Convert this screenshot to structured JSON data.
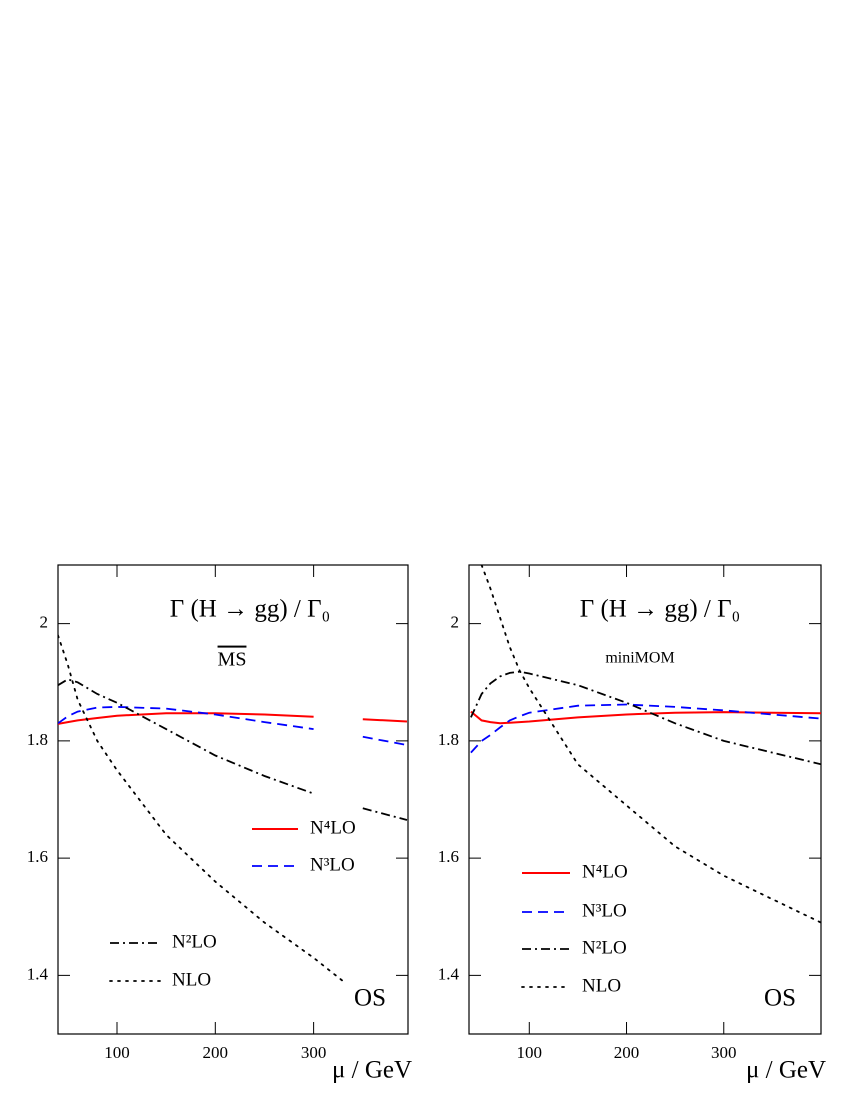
{
  "chart_data": [
    {
      "type": "line",
      "title": "Γ (H → gg) / Γ₀",
      "subtitle": "MS",
      "annotation": "OS",
      "x_label": "μ / GeV",
      "xlim": [
        40,
        396
      ],
      "xticks": [
        100,
        200,
        300
      ],
      "ylim": [
        1.3,
        2.1
      ],
      "yticks": [
        1.4,
        1.6,
        1.8,
        2
      ],
      "x": [
        40,
        50,
        60,
        80,
        100,
        150,
        200,
        250,
        300,
        330,
        350,
        395
      ],
      "series": [
        {
          "name": "N⁴LO",
          "color": "#ff0000",
          "style": "solid",
          "values": [
            1.829,
            1.832,
            1.835,
            1.839,
            1.843,
            1.847,
            1.847,
            1.845,
            1.841,
            null,
            1.837,
            1.833
          ]
        },
        {
          "name": "N³LO",
          "color": "#0000ff",
          "style": "dashed",
          "values": [
            1.83,
            1.842,
            1.85,
            1.857,
            1.858,
            1.855,
            1.845,
            1.832,
            1.82,
            null,
            1.807,
            1.793
          ]
        },
        {
          "name": "N²LO",
          "color": "#000000",
          "style": "dashdot",
          "values": [
            1.895,
            1.905,
            1.9,
            1.88,
            1.865,
            1.82,
            1.775,
            1.74,
            1.71,
            null,
            1.685,
            1.665
          ]
        },
        {
          "name": "NLO",
          "color": "#000000",
          "style": "dotted",
          "values": [
            1.98,
            1.93,
            1.87,
            1.8,
            1.75,
            1.64,
            1.56,
            1.49,
            1.43,
            1.39,
            null,
            null
          ]
        }
      ]
    },
    {
      "type": "line",
      "title": "Γ (H → gg) / Γ₀",
      "subtitle": "miniMOM",
      "annotation": "OS",
      "x_label": "μ / GeV",
      "xlim": [
        38,
        400
      ],
      "xticks": [
        100,
        200,
        300
      ],
      "ylim": [
        1.3,
        2.1
      ],
      "yticks": [
        1.4,
        1.6,
        1.8,
        2
      ],
      "x": [
        40,
        51,
        60,
        70,
        80,
        90,
        100,
        150,
        200,
        250,
        300,
        350,
        400
      ],
      "series": [
        {
          "name": "N⁴LO",
          "color": "#ff0000",
          "style": "solid",
          "values": [
            1.85,
            1.835,
            1.832,
            1.83,
            1.831,
            1.832,
            1.833,
            1.84,
            1.845,
            1.848,
            1.849,
            1.848,
            1.847
          ]
        },
        {
          "name": "N³LO",
          "color": "#0000ff",
          "style": "dashed",
          "values": [
            1.78,
            1.8,
            1.81,
            1.823,
            1.835,
            1.842,
            1.848,
            1.86,
            1.862,
            1.858,
            1.852,
            1.845,
            1.838
          ]
        },
        {
          "name": "N²LO",
          "color": "#000000",
          "style": "dashdot",
          "values": [
            1.84,
            1.88,
            1.898,
            1.91,
            1.916,
            1.918,
            1.915,
            1.895,
            1.865,
            1.83,
            1.8,
            1.78,
            1.76
          ]
        },
        {
          "name": "NLO",
          "color": "#000000",
          "style": "dotted",
          "values": [
            null,
            2.1,
            2.06,
            2.01,
            1.96,
            1.92,
            1.89,
            1.76,
            1.69,
            1.62,
            1.57,
            1.53,
            1.49
          ]
        }
      ]
    }
  ]
}
